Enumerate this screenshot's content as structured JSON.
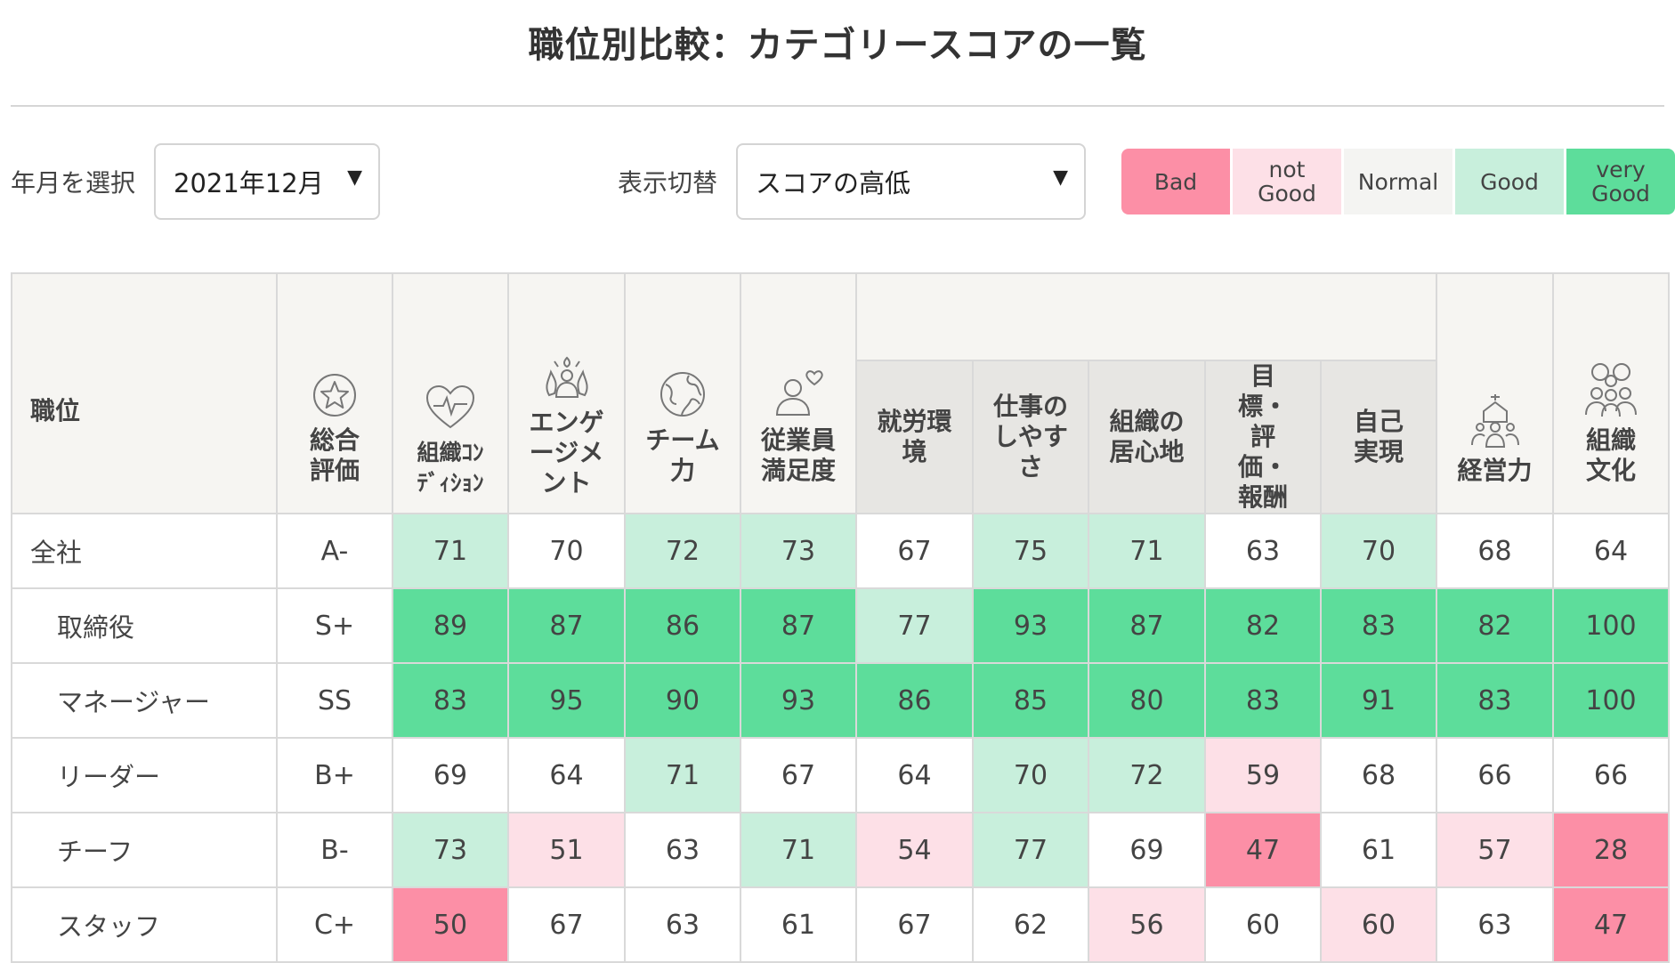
{
  "title": "職位別比較：カテゴリースコアの一覧",
  "controls": {
    "month_label": "年月を選択",
    "month_value": "2021年12月",
    "display_label": "表示切替",
    "display_value": "スコアの高低",
    "arrow": "▼"
  },
  "legend": {
    "bad": "Bad",
    "not_good": "not Good",
    "normal": "Normal",
    "good": "Good",
    "very_good": "very Good"
  },
  "colors": {
    "bad": "#fc8fa6",
    "not_good": "#fde0e7",
    "normal": "#ffffff",
    "good": "#c8efdc",
    "very_good": "#5ddd9b"
  },
  "table": {
    "headers": {
      "position": "職位",
      "overall": "総合評価",
      "org_condition": "組織ｺﾝﾃﾞｨｼｮﾝ",
      "engagement": "エンゲージメント",
      "team": "チーム力",
      "satisfaction": "従業員満足度",
      "work_env": "就労環境",
      "ease_of_work": "仕事のしやすさ",
      "comfort": "組織の居心地",
      "goals": "目標・評価・報酬",
      "self_real": "自己実現",
      "management": "経営力",
      "culture": "組織文化"
    },
    "rows": [
      {
        "position": "全社",
        "overall": "A-",
        "scores": [
          "71",
          "70",
          "72",
          "73",
          "67",
          "75",
          "71",
          "63",
          "70",
          "68",
          "64"
        ],
        "levels": [
          "good",
          "normal",
          "good",
          "good",
          "normal",
          "good",
          "good",
          "normal",
          "good",
          "normal",
          "normal"
        ]
      },
      {
        "position": "取締役",
        "overall": "S+",
        "scores": [
          "89",
          "87",
          "86",
          "87",
          "77",
          "93",
          "87",
          "82",
          "83",
          "82",
          "100"
        ],
        "levels": [
          "very_good",
          "very_good",
          "very_good",
          "very_good",
          "good",
          "very_good",
          "very_good",
          "very_good",
          "very_good",
          "very_good",
          "very_good"
        ]
      },
      {
        "position": "マネージャー",
        "overall": "SS",
        "scores": [
          "83",
          "95",
          "90",
          "93",
          "86",
          "85",
          "80",
          "83",
          "91",
          "83",
          "100"
        ],
        "levels": [
          "very_good",
          "very_good",
          "very_good",
          "very_good",
          "very_good",
          "very_good",
          "very_good",
          "very_good",
          "very_good",
          "very_good",
          "very_good"
        ]
      },
      {
        "position": "リーダー",
        "overall": "B+",
        "scores": [
          "69",
          "64",
          "71",
          "67",
          "64",
          "70",
          "72",
          "59",
          "68",
          "66",
          "66"
        ],
        "levels": [
          "normal",
          "normal",
          "good",
          "normal",
          "normal",
          "good",
          "good",
          "not_good",
          "normal",
          "normal",
          "normal"
        ]
      },
      {
        "position": "チーフ",
        "overall": "B-",
        "scores": [
          "73",
          "51",
          "63",
          "71",
          "54",
          "77",
          "69",
          "47",
          "61",
          "57",
          "28"
        ],
        "levels": [
          "good",
          "not_good",
          "normal",
          "good",
          "not_good",
          "good",
          "normal",
          "bad",
          "normal",
          "not_good",
          "bad"
        ]
      },
      {
        "position": "スタッフ",
        "overall": "C+",
        "scores": [
          "50",
          "67",
          "63",
          "61",
          "67",
          "62",
          "56",
          "60",
          "60",
          "63",
          "47"
        ],
        "levels": [
          "bad",
          "normal",
          "normal",
          "normal",
          "normal",
          "normal",
          "not_good",
          "normal",
          "not_good",
          "normal",
          "bad"
        ]
      }
    ]
  }
}
